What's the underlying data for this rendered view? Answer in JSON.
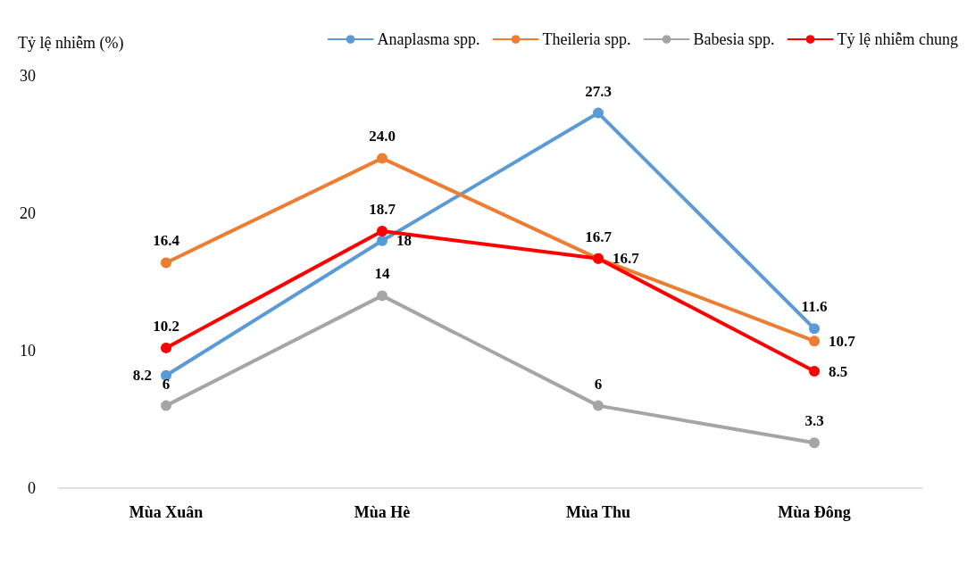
{
  "chart_data": {
    "type": "line",
    "ylabel": "Tỷ lệ nhiễm (%)",
    "categories": [
      "Mùa Xuân",
      "Mùa Hè",
      "Mùa Thu",
      "Mùa Đông"
    ],
    "series": [
      {
        "name": "Anaplasma spp.",
        "color": "#5b9bd5",
        "values": [
          8.2,
          18,
          27.3,
          11.6
        ],
        "value_labels": [
          "8.2",
          "18",
          "27.3",
          "11.6"
        ]
      },
      {
        "name": "Theileria spp.",
        "color": "#ed7d31",
        "values": [
          16.4,
          24.0,
          16.7,
          10.7
        ],
        "value_labels": [
          "16.4",
          "24.0",
          "16.7",
          "10.7"
        ]
      },
      {
        "name": "Babesia spp.",
        "color": "#a5a5a5",
        "values": [
          6,
          14,
          6,
          3.3
        ],
        "value_labels": [
          "6",
          "14",
          "6",
          "3.3"
        ]
      },
      {
        "name": "Tỷ lệ nhiễm chung",
        "color": "#ff0000",
        "values": [
          10.2,
          18.7,
          16.7,
          8.5
        ],
        "value_labels": [
          "10.2",
          "18.7",
          "16.7",
          "8.5"
        ]
      }
    ],
    "ylim": [
      0,
      30
    ],
    "yticks": [
      0,
      10,
      20,
      30
    ],
    "grid": false,
    "legend": "top right",
    "marker": "circle",
    "line_style": "solid"
  }
}
